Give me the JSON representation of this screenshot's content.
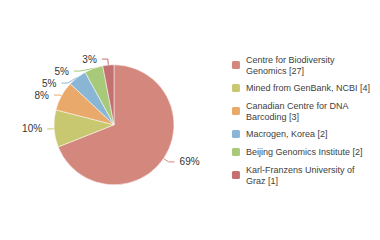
{
  "chart_data": {
    "type": "pie",
    "categories": [
      "Centre for Biodiversity\nGenomics [27]",
      "Mined from GenBank, NCBI [4]",
      "Canadian Centre for DNA\nBarcoding [3]",
      "Macrogen, Korea [2]",
      "Beijing Genomics Institute [2]",
      "Karl-Franzens University of\nGraz [1]"
    ],
    "values": [
      69,
      10,
      8,
      5,
      5,
      3
    ],
    "value_labels": [
      "69%",
      "10%",
      "8%",
      "5%",
      "5%",
      "3%"
    ],
    "colors": [
      "#d4877c",
      "#c8c870",
      "#e8a96a",
      "#8ab6d6",
      "#a8c87a",
      "#c47070"
    ],
    "data_labels": true,
    "legend": "right"
  }
}
